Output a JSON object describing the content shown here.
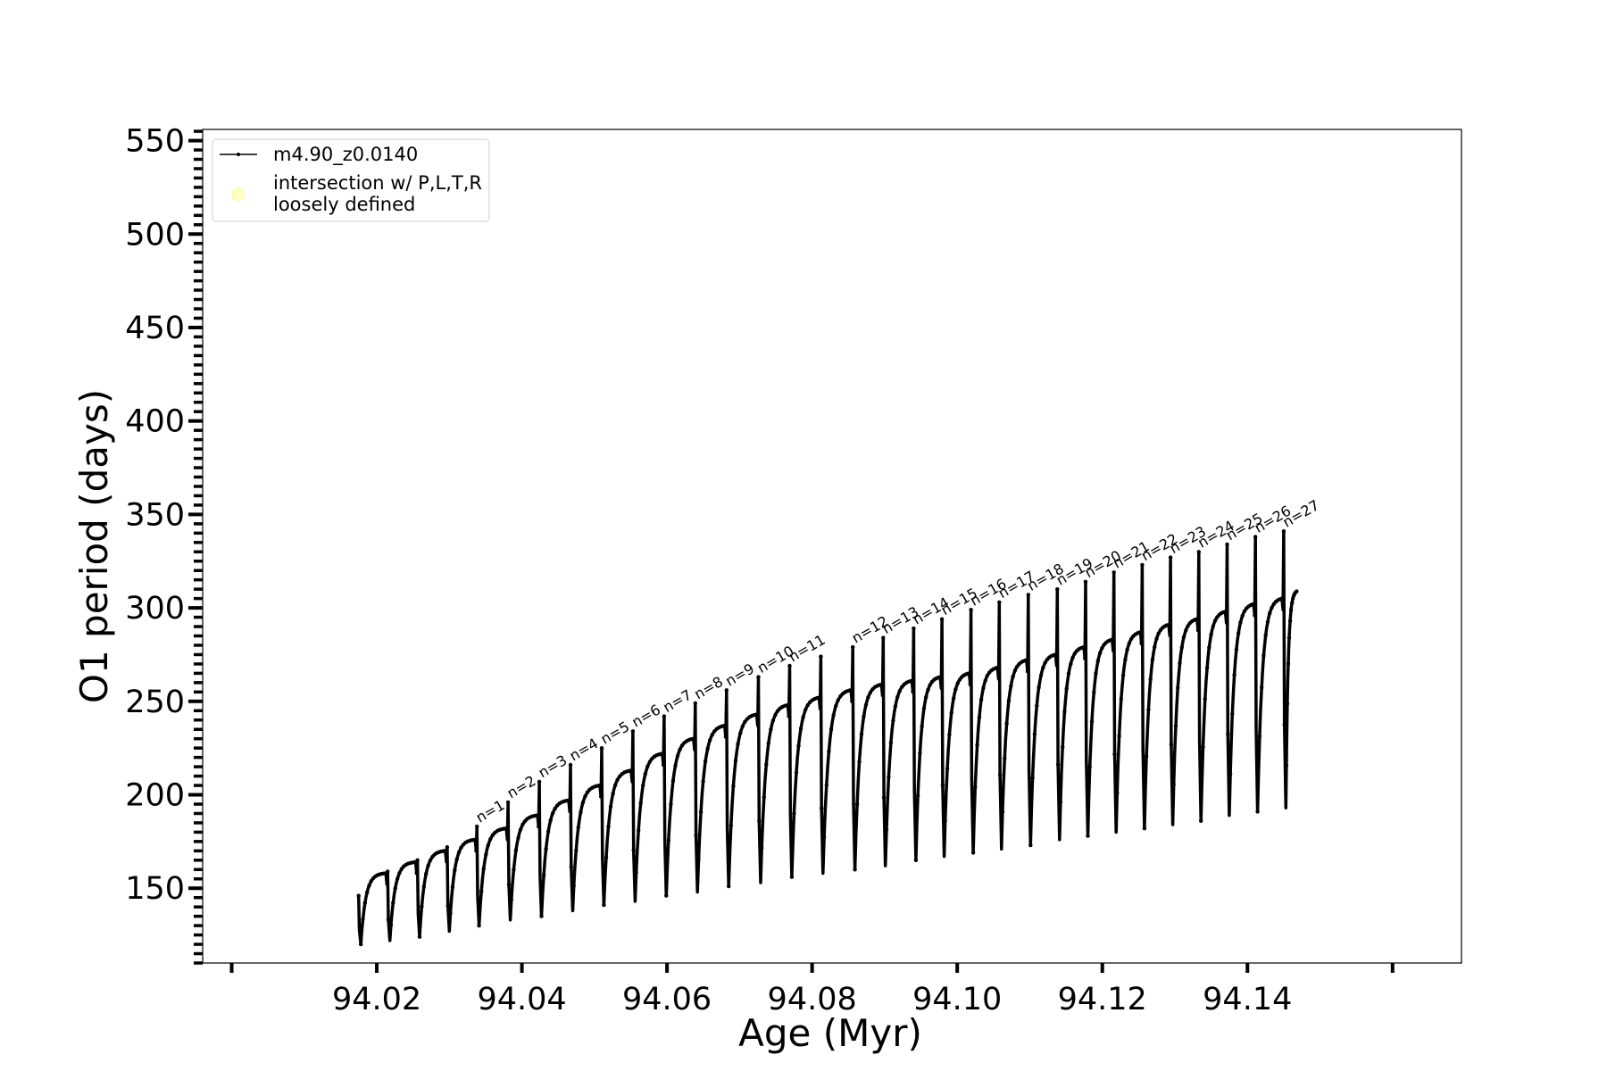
{
  "chart_data": {
    "type": "line",
    "title": "",
    "xlabel": "Age (Myr)",
    "ylabel": "O1 period (days)",
    "xlim": [
      93.996,
      94.1695
    ],
    "ylim": [
      110,
      556
    ],
    "xticks": [
      94.0,
      94.02,
      94.04,
      94.06,
      94.08,
      94.1,
      94.12,
      94.14,
      94.16
    ],
    "xtick_labels": [
      "94.02",
      "94.04",
      "94.06",
      "94.08",
      "94.10",
      "94.12",
      "94.14"
    ],
    "xtick_label_values": [
      94.02,
      94.04,
      94.06,
      94.08,
      94.1,
      94.12,
      94.14
    ],
    "yticks": [
      150,
      200,
      250,
      300,
      350,
      400,
      450,
      500,
      550
    ],
    "ytick_labels": [
      "150",
      "200",
      "250",
      "300",
      "350",
      "400",
      "450",
      "500",
      "550"
    ],
    "y_minor_step": 5,
    "x_minor_ticks": false,
    "grid": false,
    "legend": {
      "placement": "upper left",
      "entries": [
        {
          "label": "m4.90_z0.0140",
          "marker": "line-with-dots",
          "color": "#000000"
        },
        {
          "label_lines": [
            "intersection w/ P,L,T,R",
            "loosely defined"
          ],
          "marker": "circle",
          "color": "#ffffc0"
        }
      ]
    },
    "series": [
      {
        "name": "m4.90_z0.0140",
        "color": "#000000",
        "description_of_shape": "thermal-pulse sawtooth: period rises along a concave arc between pulses, spikes up at each pulse, then drops to a minimum",
        "pulses": [
          {
            "x": 94.0175,
            "min": 120,
            "max": 158,
            "spike": 146
          },
          {
            "x": 94.0215,
            "min": 122,
            "max": 164,
            "spike": 159
          },
          {
            "x": 94.0256,
            "min": 124,
            "max": 170,
            "spike": 165
          },
          {
            "x": 94.0297,
            "min": 127,
            "max": 176,
            "spike": 172
          },
          {
            "x": 94.0338,
            "min": 130,
            "max": 182,
            "spike": 183
          },
          {
            "x": 94.0381,
            "min": 133,
            "max": 189,
            "spike": 196
          },
          {
            "x": 94.0424,
            "min": 135,
            "max": 197,
            "spike": 207
          },
          {
            "x": 94.0467,
            "min": 138,
            "max": 205,
            "spike": 216
          },
          {
            "x": 94.051,
            "min": 141,
            "max": 213,
            "spike": 225
          },
          {
            "x": 94.0553,
            "min": 143,
            "max": 222,
            "spike": 234
          },
          {
            "x": 94.0596,
            "min": 146,
            "max": 230,
            "spike": 242
          },
          {
            "x": 94.0639,
            "min": 148,
            "max": 237,
            "spike": 249
          },
          {
            "x": 94.0682,
            "min": 151,
            "max": 243,
            "spike": 256
          },
          {
            "x": 94.0726,
            "min": 153,
            "max": 248,
            "spike": 263
          },
          {
            "x": 94.0769,
            "min": 156,
            "max": 252,
            "spike": 269
          },
          {
            "x": 94.0812,
            "min": 158,
            "max": 256,
            "spike": 274
          },
          {
            "x": 94.0856,
            "min": 160,
            "max": 259,
            "spike": 279
          },
          {
            "x": 94.0898,
            "min": 162,
            "max": 261,
            "spike": 284
          },
          {
            "x": 94.094,
            "min": 165,
            "max": 263,
            "spike": 289
          },
          {
            "x": 94.0979,
            "min": 167,
            "max": 265,
            "spike": 294
          },
          {
            "x": 94.1019,
            "min": 169,
            "max": 268,
            "spike": 299
          },
          {
            "x": 94.1058,
            "min": 171,
            "max": 272,
            "spike": 303
          },
          {
            "x": 94.1098,
            "min": 173,
            "max": 275,
            "spike": 307
          },
          {
            "x": 94.1138,
            "min": 176,
            "max": 279,
            "spike": 310
          },
          {
            "x": 94.1177,
            "min": 178,
            "max": 283,
            "spike": 314
          },
          {
            "x": 94.1216,
            "min": 180,
            "max": 287,
            "spike": 319
          },
          {
            "x": 94.1255,
            "min": 182,
            "max": 291,
            "spike": 323
          },
          {
            "x": 94.1294,
            "min": 184,
            "max": 294,
            "spike": 327
          },
          {
            "x": 94.1333,
            "min": 186,
            "max": 298,
            "spike": 330
          },
          {
            "x": 94.1372,
            "min": 189,
            "max": 302,
            "spike": 334
          },
          {
            "x": 94.1411,
            "min": 191,
            "max": 305,
            "spike": 338
          },
          {
            "x": 94.145,
            "min": 193,
            "max": 309,
            "spike": 341
          }
        ],
        "end_x": 94.1471,
        "end_y": 308
      }
    ],
    "annotations": [
      {
        "text": "n=1",
        "x": 94.0338,
        "y": 183
      },
      {
        "text": "n=2",
        "x": 94.0381,
        "y": 196
      },
      {
        "text": "n=3",
        "x": 94.0424,
        "y": 207
      },
      {
        "text": "n=4",
        "x": 94.0467,
        "y": 216
      },
      {
        "text": "n=5",
        "x": 94.051,
        "y": 225
      },
      {
        "text": "n=6",
        "x": 94.0553,
        "y": 234
      },
      {
        "text": "n=7",
        "x": 94.0596,
        "y": 242
      },
      {
        "text": "n=8",
        "x": 94.0639,
        "y": 249
      },
      {
        "text": "n=9",
        "x": 94.0682,
        "y": 256
      },
      {
        "text": "n=10",
        "x": 94.0726,
        "y": 263
      },
      {
        "text": "n=11",
        "x": 94.0769,
        "y": 269
      },
      {
        "text": "n=12",
        "x": 94.0856,
        "y": 279
      },
      {
        "text": "n=13",
        "x": 94.0898,
        "y": 284
      },
      {
        "text": "n=14",
        "x": 94.094,
        "y": 289
      },
      {
        "text": "n=15",
        "x": 94.0979,
        "y": 294
      },
      {
        "text": "n=16",
        "x": 94.1019,
        "y": 299
      },
      {
        "text": "n=17",
        "x": 94.1058,
        "y": 303
      },
      {
        "text": "n=18",
        "x": 94.1098,
        "y": 307
      },
      {
        "text": "n=19",
        "x": 94.1138,
        "y": 310
      },
      {
        "text": "n=20",
        "x": 94.1177,
        "y": 314
      },
      {
        "text": "n=21",
        "x": 94.1216,
        "y": 319
      },
      {
        "text": "n=22",
        "x": 94.1255,
        "y": 323
      },
      {
        "text": "n=23",
        "x": 94.1294,
        "y": 327
      },
      {
        "text": "n=24",
        "x": 94.1333,
        "y": 330
      },
      {
        "text": "n=25",
        "x": 94.1372,
        "y": 334
      },
      {
        "text": "n=26",
        "x": 94.1411,
        "y": 338
      },
      {
        "text": "n=27",
        "x": 94.145,
        "y": 341
      }
    ]
  }
}
